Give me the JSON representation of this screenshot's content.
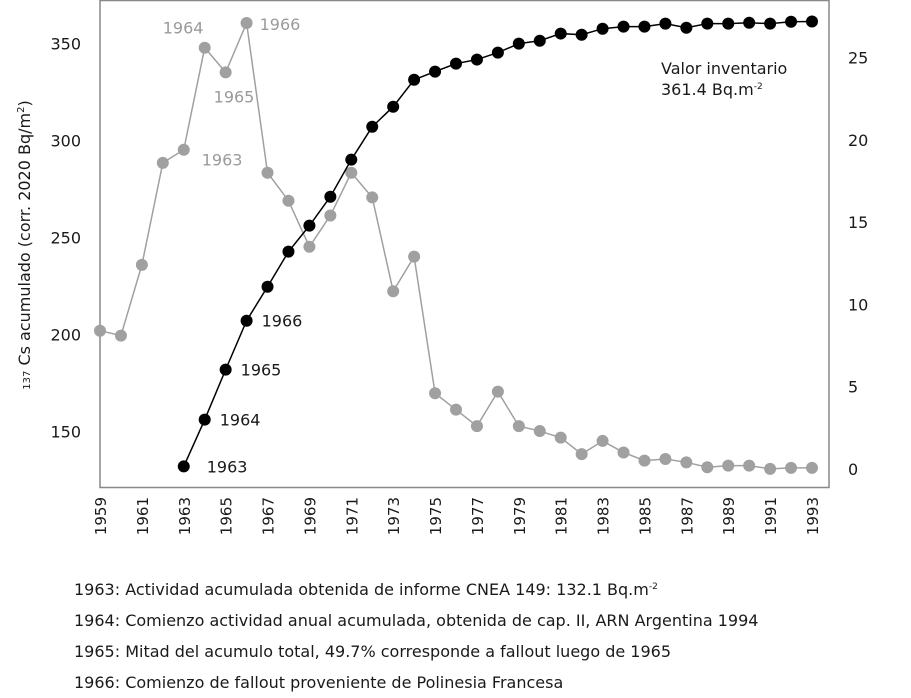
{
  "chart_data": {
    "type": "line",
    "title": "",
    "xlabel": "",
    "ylabel": "137 Cs acumulado (corr. 2020 Bq/m2)",
    "ylabel_parts": {
      "iso": "137",
      "main": " Cs acumulado (corr. 2020 Bq/m",
      "exp": "2",
      "tail": ")"
    },
    "y2label": "",
    "x": [
      1959,
      1960,
      1961,
      1962,
      1963,
      1964,
      1965,
      1966,
      1967,
      1968,
      1969,
      1970,
      1971,
      1972,
      1973,
      1974,
      1975,
      1976,
      1977,
      1978,
      1979,
      1980,
      1981,
      1982,
      1983,
      1984,
      1985,
      1986,
      1987,
      1988,
      1989,
      1990,
      1991,
      1992,
      1993
    ],
    "xlim": [
      1959,
      1993
    ],
    "xticks": [
      "1959",
      "1961",
      "1963",
      "1965",
      "1967",
      "1969",
      "1971",
      "1973",
      "1975",
      "1977",
      "1979",
      "1981",
      "1983",
      "1985",
      "1987",
      "1989",
      "1991",
      "1993"
    ],
    "ylim": [
      121.5,
      372.5
    ],
    "yticks": [
      "150",
      "200",
      "250",
      "300",
      "350"
    ],
    "y2lim": [
      -1.1,
      28.5
    ],
    "y2ticks": [
      "0",
      "5",
      "10",
      "15",
      "20",
      "25"
    ],
    "grid": false,
    "legend": "none",
    "series": [
      {
        "name": "Actividad acumulada",
        "axis": "left",
        "color": "#000000",
        "x": [
          1963,
          1964,
          1965,
          1966,
          1967,
          1968,
          1969,
          1970,
          1971,
          1972,
          1973,
          1974,
          1975,
          1976,
          1977,
          1978,
          1979,
          1980,
          1981,
          1982,
          1983,
          1984,
          1985,
          1986,
          1987,
          1988,
          1989,
          1990,
          1991,
          1992,
          1993
        ],
        "values": [
          132.1,
          156.2,
          182.0,
          207.2,
          224.7,
          242.8,
          256.2,
          271.1,
          290.2,
          307.2,
          317.5,
          331.4,
          335.6,
          339.7,
          341.8,
          345.4,
          350.0,
          351.5,
          355.2,
          354.6,
          357.7,
          358.8,
          358.8,
          360.3,
          358.2,
          360.3,
          360.3,
          360.8,
          360.3,
          361.3,
          361.4
        ]
      },
      {
        "name": "Actividad anual",
        "axis": "right",
        "color": "#a0a0a0",
        "x": [
          1959,
          1960,
          1961,
          1962,
          1963,
          1964,
          1965,
          1966,
          1967,
          1968,
          1969,
          1970,
          1971,
          1972,
          1973,
          1974,
          1975,
          1976,
          1977,
          1978,
          1979,
          1980,
          1981,
          1982,
          1983,
          1984,
          1985,
          1986,
          1987,
          1988,
          1989,
          1990,
          1991,
          1992,
          1993
        ],
        "values": [
          8.4,
          8.1,
          12.4,
          18.6,
          19.4,
          25.6,
          24.1,
          27.1,
          18.0,
          16.3,
          13.5,
          15.4,
          18.0,
          16.5,
          10.8,
          12.9,
          4.6,
          3.6,
          2.6,
          4.7,
          2.6,
          2.3,
          1.9,
          0.9,
          1.7,
          1.0,
          0.5,
          0.6,
          0.4,
          0.1,
          0.2,
          0.2,
          0.0,
          0.06,
          0.06
        ]
      }
    ],
    "annotations": {
      "gray": [
        {
          "text": "1964",
          "year": 1964
        },
        {
          "text": "1965",
          "year": 1965
        },
        {
          "text": "1966",
          "year": 1966
        },
        {
          "text": "1963",
          "year": 1963
        }
      ],
      "black": [
        {
          "text": "1963",
          "year": 1963
        },
        {
          "text": "1964",
          "year": 1964
        },
        {
          "text": "1965",
          "year": 1965
        },
        {
          "text": "1966",
          "year": 1966
        }
      ],
      "inventory": {
        "line1": "Valor inventario",
        "line2": "361.4 Bq.m",
        "exp": "-2"
      }
    }
  },
  "notes": [
    {
      "text": "1963: Actividad acumulada obtenida de informe CNEA 149: 132.1 Bq.m",
      "exp": "-2"
    },
    {
      "text": "1964: Comienzo actividad anual acumulada, obtenida de cap. II, ARN Argentina 1994",
      "exp": ""
    },
    {
      "text": "1965: Mitad del acumulo total, 49.7% corresponde a fallout luego de 1965",
      "exp": ""
    },
    {
      "text": "1966: Comienzo de fallout proveniente de Polinesia Francesa",
      "exp": ""
    }
  ]
}
